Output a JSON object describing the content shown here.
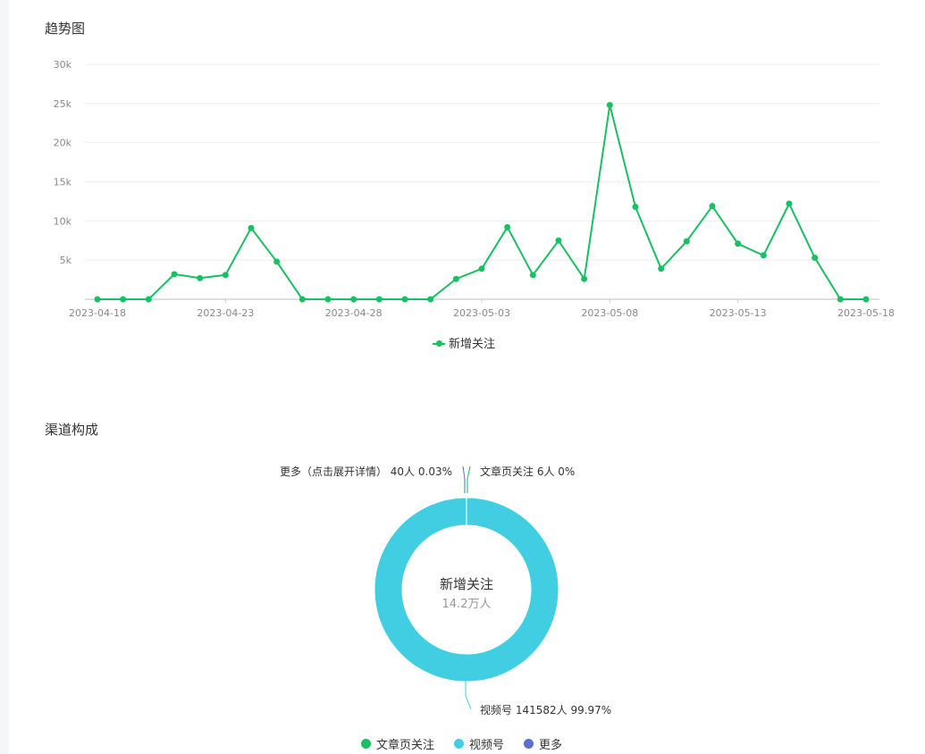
{
  "trend_section": {
    "title": "趋势图"
  },
  "channel_section": {
    "title": "渠道构成"
  },
  "colors": {
    "line": "#17c061",
    "article": "#17c061",
    "video": "#41cee3",
    "more": "#5b6fcf",
    "axis_text": "#888888",
    "grid": "#eeeeee"
  },
  "chart_data": [
    {
      "type": "line",
      "x": [
        "2023-04-18",
        "2023-04-19",
        "2023-04-20",
        "2023-04-21",
        "2023-04-22",
        "2023-04-23",
        "2023-04-24",
        "2023-04-25",
        "2023-04-26",
        "2023-04-27",
        "2023-04-28",
        "2023-04-29",
        "2023-04-30",
        "2023-05-01",
        "2023-05-02",
        "2023-05-03",
        "2023-05-04",
        "2023-05-05",
        "2023-05-06",
        "2023-05-07",
        "2023-05-08",
        "2023-05-09",
        "2023-05-10",
        "2023-05-11",
        "2023-05-12",
        "2023-05-13",
        "2023-05-14",
        "2023-05-15",
        "2023-05-16",
        "2023-05-17",
        "2023-05-18"
      ],
      "x_tick_labels": [
        "2023-04-18",
        "2023-04-23",
        "2023-04-28",
        "2023-05-03",
        "2023-05-08",
        "2023-05-13",
        "2023-05-18"
      ],
      "series": [
        {
          "name": "新增关注",
          "values": [
            0,
            0,
            0,
            3200,
            2700,
            3100,
            9100,
            4800,
            0,
            0,
            0,
            0,
            0,
            0,
            2600,
            3900,
            9200,
            3100,
            7500,
            2600,
            24800,
            11800,
            3900,
            7400,
            11900,
            7100,
            5600,
            12200,
            5300,
            0,
            0
          ]
        }
      ],
      "y_tick_labels": [
        "5k",
        "10k",
        "15k",
        "20k",
        "25k",
        "30k"
      ],
      "ylim": [
        0,
        30000
      ],
      "grid": true,
      "legend": "bottom-center"
    },
    {
      "type": "pie",
      "donut": true,
      "center_title": "新增关注",
      "center_value": "14.2万人",
      "slices": [
        {
          "name": "文章页关注",
          "count": 6,
          "count_label": "6人",
          "percent_label": "0%",
          "value": 0.004
        },
        {
          "name": "视频号",
          "count": 141582,
          "count_label": "141582人",
          "percent_label": "99.97%",
          "value": 99.966
        },
        {
          "name": "更多",
          "count": 40,
          "count_label": "40人",
          "percent_label": "0.03%",
          "value": 0.028
        }
      ],
      "slice_labels": {
        "more": "更多（点击展开详情） 40人 0.03%",
        "article": "文章页关注 6人 0%",
        "video": "视频号 141582人 99.97%"
      },
      "legend_items": [
        "文章页关注",
        "视频号",
        "更多"
      ],
      "legend": "bottom-center"
    }
  ]
}
